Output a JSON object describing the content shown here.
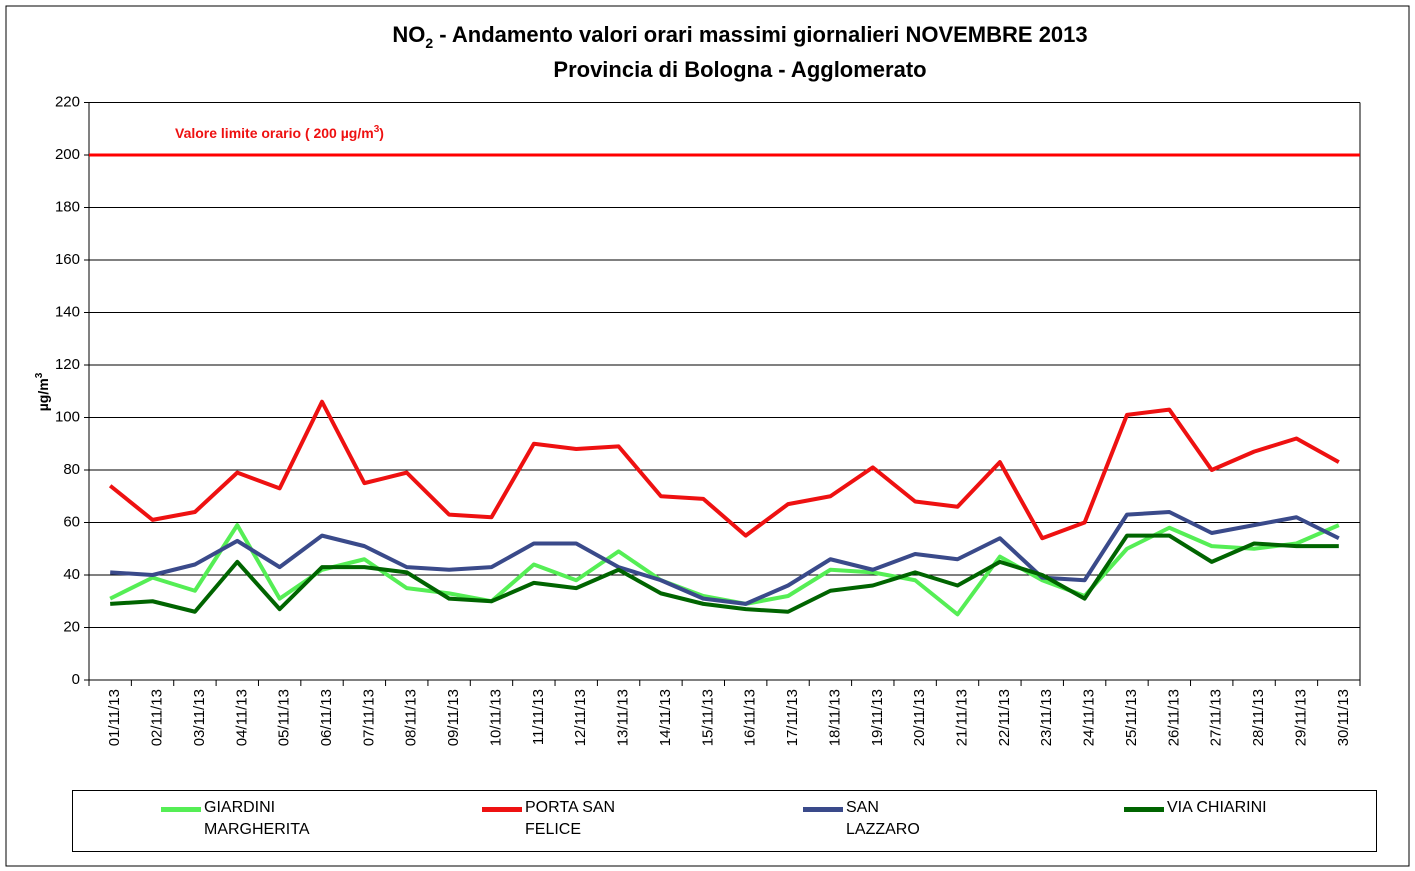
{
  "chart_data": {
    "type": "line",
    "title": [
      "NO",
      "2",
      " - Andamento valori orari massimi giornalieri NOVEMBRE 2013"
    ],
    "subtitle": "Provincia di Bologna - Agglomerato",
    "y_label": [
      "µg/m",
      "3"
    ],
    "annotation": [
      "Valore limite orario ( 200 µg/m",
      "3",
      ")"
    ],
    "limit_line": {
      "value": 200,
      "color": "#ff0000"
    },
    "categories": [
      "01/11/13",
      "02/11/13",
      "03/11/13",
      "04/11/13",
      "05/11/13",
      "06/11/13",
      "07/11/13",
      "08/11/13",
      "09/11/13",
      "10/11/13",
      "11/11/13",
      "12/11/13",
      "13/11/13",
      "14/11/13",
      "15/11/13",
      "16/11/13",
      "17/11/13",
      "18/11/13",
      "19/11/13",
      "20/11/13",
      "21/11/13",
      "22/11/13",
      "23/11/13",
      "24/11/13",
      "25/11/13",
      "26/11/13",
      "27/11/13",
      "28/11/13",
      "29/11/13",
      "30/11/13"
    ],
    "series": [
      {
        "name": "GIARDINI MARGHERITA",
        "color": "#55ee55",
        "values": [
          31,
          39,
          34,
          59,
          31,
          42,
          46,
          35,
          33,
          30,
          44,
          38,
          49,
          38,
          32,
          29,
          32,
          42,
          41,
          38,
          25,
          47,
          38,
          32,
          50,
          58,
          51,
          50,
          52,
          59
        ]
      },
      {
        "name": "PORTA SAN FELICE",
        "color": "#ee1111",
        "values": [
          74,
          61,
          64,
          79,
          73,
          106,
          75,
          79,
          63,
          62,
          90,
          88,
          89,
          70,
          69,
          55,
          67,
          70,
          81,
          68,
          66,
          83,
          54,
          60,
          101,
          103,
          80,
          87,
          92,
          83
        ]
      },
      {
        "name": "SAN LAZZARO",
        "color": "#3a4a8a",
        "values": [
          41,
          40,
          44,
          53,
          43,
          55,
          51,
          43,
          42,
          43,
          52,
          52,
          43,
          38,
          31,
          29,
          36,
          46,
          42,
          48,
          46,
          54,
          39,
          38,
          63,
          64,
          56,
          59,
          62,
          54
        ]
      },
      {
        "name": "VIA CHIARINI",
        "color": "#006400",
        "values": [
          29,
          30,
          26,
          45,
          27,
          43,
          43,
          41,
          31,
          30,
          37,
          35,
          42,
          33,
          29,
          27,
          26,
          34,
          36,
          41,
          36,
          45,
          40,
          31,
          55,
          55,
          45,
          52,
          51,
          51
        ]
      }
    ],
    "ylim": [
      0,
      220
    ],
    "yticks": [
      0,
      20,
      40,
      60,
      80,
      100,
      120,
      140,
      160,
      180,
      200,
      220
    ],
    "grid": true
  }
}
